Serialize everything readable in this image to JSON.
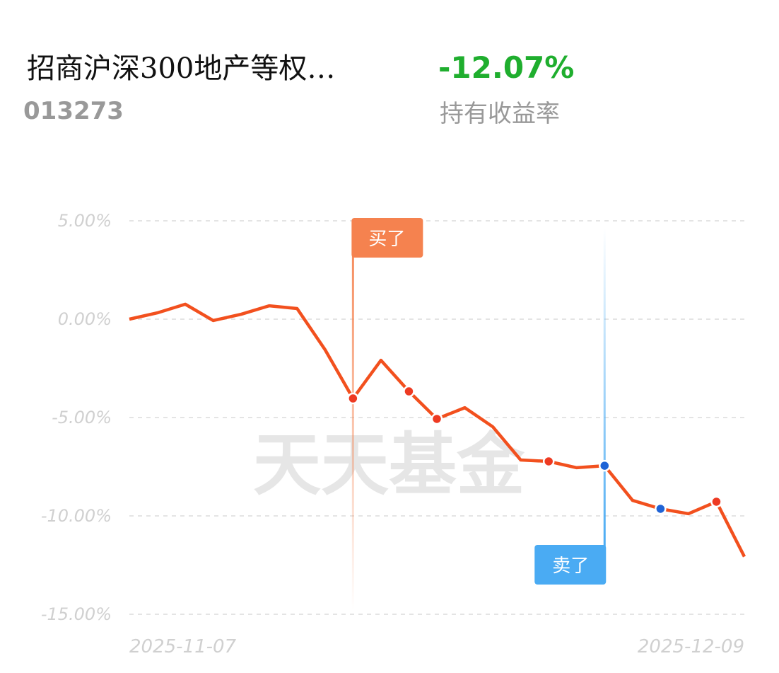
{
  "header": {
    "fund_name": "招商沪深300地产等权…",
    "fund_code": "013273",
    "return": "-12.07%",
    "return_label": "持有收益率"
  },
  "chart_data": {
    "type": "line",
    "watermark": "天天基金",
    "categories": [
      "2025-11-07",
      null,
      null,
      null,
      null,
      null,
      null,
      null,
      null,
      null,
      null,
      null,
      null,
      null,
      null,
      null,
      null,
      null,
      null,
      null,
      null,
      null,
      "2025-12-09"
    ],
    "values": [
      0,
      0.32,
      0.76,
      -0.07,
      0.25,
      0.68,
      0.54,
      -1.55,
      -4.03,
      -2.09,
      -3.67,
      -5.07,
      -4.5,
      -5.47,
      -7.16,
      -7.23,
      -7.55,
      -7.45,
      -9.21,
      -9.64,
      -9.89,
      -9.28,
      -12.07
    ],
    "color": "#f2501e",
    "marker_colors": [
      null,
      null,
      null,
      null,
      null,
      null,
      null,
      null,
      "#ee3a22",
      null,
      "#ee3a22",
      "#ee3a22",
      null,
      null,
      null,
      "#ee3a22",
      null,
      "#1f63d6",
      null,
      "#1f63d6",
      null,
      "#ee3a22",
      null
    ],
    "annotations": [
      {
        "text": "买了",
        "index": 8,
        "color": "#f5824f"
      },
      {
        "text": "卖了",
        "index": 17,
        "color": "#4aabf3"
      }
    ],
    "ylim": [
      -15,
      5
    ],
    "yticks": [
      {
        "value": 5,
        "label": "5.00%"
      },
      {
        "value": 0,
        "label": "0.00%"
      },
      {
        "value": -5,
        "label": "-5.00%"
      },
      {
        "value": -10,
        "label": "-10.00%"
      },
      {
        "value": -15,
        "label": "-15.00%"
      }
    ],
    "grid": true
  }
}
